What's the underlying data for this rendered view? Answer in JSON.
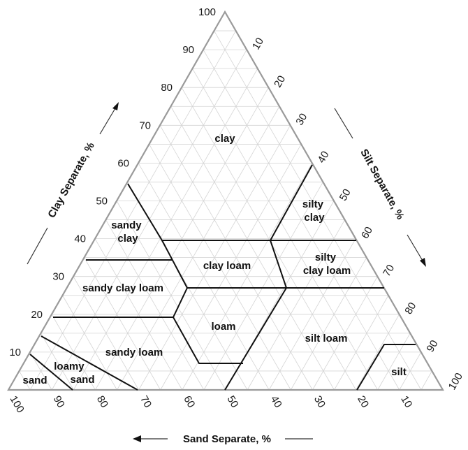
{
  "axes": {
    "clay": {
      "title": "Clay Separate, %",
      "ticks": [
        "10",
        "20",
        "30",
        "40",
        "50",
        "60",
        "70",
        "80",
        "90",
        "100"
      ]
    },
    "silt": {
      "title": "Silt Separate, %",
      "ticks": [
        "10",
        "20",
        "30",
        "40",
        "50",
        "60",
        "70",
        "80",
        "90",
        "100"
      ]
    },
    "sand": {
      "title": "Sand Separate, %",
      "ticks": [
        "100",
        "90",
        "80",
        "70",
        "60",
        "50",
        "40",
        "30",
        "20",
        "10"
      ]
    }
  },
  "regions": [
    {
      "id": "clay",
      "lines": [
        "clay"
      ]
    },
    {
      "id": "silty-clay",
      "lines": [
        "silty",
        "clay"
      ]
    },
    {
      "id": "sandy-clay",
      "lines": [
        "sandy",
        "clay"
      ]
    },
    {
      "id": "silty-clay-loam",
      "lines": [
        "silty",
        "clay loam"
      ]
    },
    {
      "id": "clay-loam",
      "lines": [
        "clay loam"
      ]
    },
    {
      "id": "sandy-clay-loam",
      "lines": [
        "sandy clay loam"
      ]
    },
    {
      "id": "loam",
      "lines": [
        "loam"
      ]
    },
    {
      "id": "silt-loam",
      "lines": [
        "silt loam"
      ]
    },
    {
      "id": "sandy-loam",
      "lines": [
        "sandy loam"
      ]
    },
    {
      "id": "loamy-sand",
      "lines": [
        "loamy",
        "sand"
      ]
    },
    {
      "id": "sand",
      "lines": [
        "sand"
      ]
    },
    {
      "id": "silt",
      "lines": [
        "silt"
      ]
    }
  ],
  "colors": {
    "outline": "#9a9a9a",
    "grid": "#d4d4d4",
    "boundary": "#111111"
  }
}
